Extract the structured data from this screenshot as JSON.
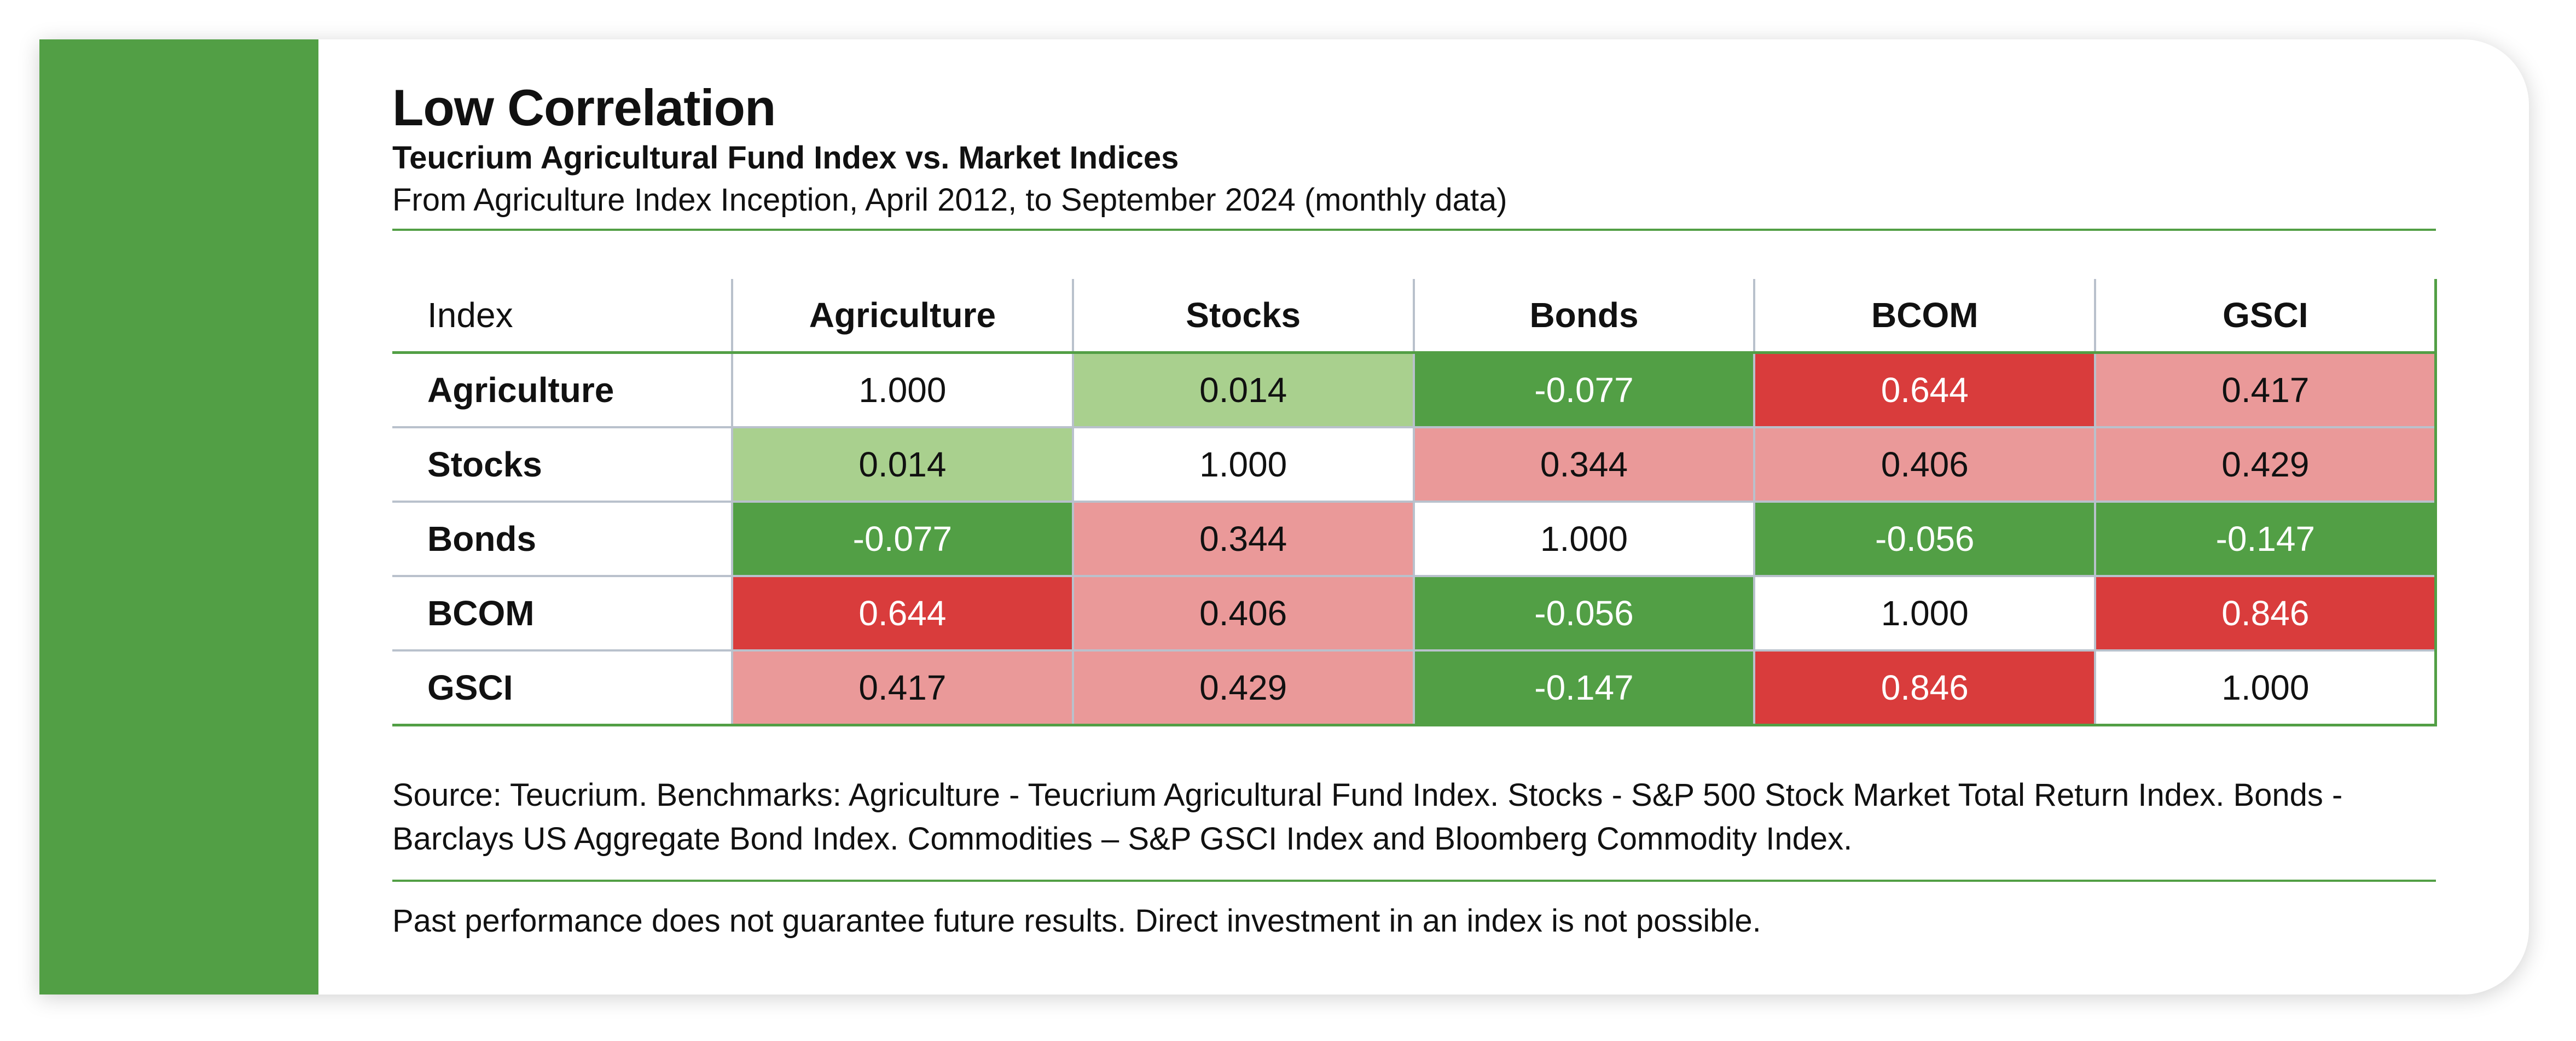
{
  "header": {
    "title": "Low Correlation",
    "subtitle": "Teucrium Agricultural Fund Index vs. Market Indices",
    "date_range": "From Agriculture Index Inception, April 2012, to September 2024 (monthly data)"
  },
  "colors": {
    "brand_green": "#529f45",
    "light_green": "#a9d08e",
    "light_red": "#ea9999",
    "red": "#d93c3c",
    "neutral": "#ffffff"
  },
  "chart_data": {
    "type": "table",
    "corner_label": "Index",
    "columns": [
      "Agriculture",
      "Stocks",
      "Bonds",
      "BCOM",
      "GSCI"
    ],
    "rows": [
      {
        "label": "Agriculture",
        "values": [
          "1.000",
          "0.014",
          "-0.077",
          "0.644",
          "0.417"
        ]
      },
      {
        "label": "Stocks",
        "values": [
          "0.014",
          "1.000",
          "0.344",
          "0.406",
          "0.429"
        ]
      },
      {
        "label": "Bonds",
        "values": [
          "-0.077",
          "0.344",
          "1.000",
          "-0.056",
          "-0.147"
        ]
      },
      {
        "label": "BCOM",
        "values": [
          "0.644",
          "0.406",
          "-0.056",
          "1.000",
          "0.846"
        ]
      },
      {
        "label": "GSCI",
        "values": [
          "0.417",
          "0.429",
          "-0.147",
          "0.846",
          "1.000"
        ]
      }
    ]
  },
  "footer": {
    "source": "Source: Teucrium. Benchmarks: Agriculture - Teucrium Agricultural Fund Index. Stocks - S&P 500 Stock Market Total Return Index. Bonds - Barclays US Aggregate Bond Index. Commodities – S&P GSCI Index and Bloomberg Commodity Index.",
    "disclaimer": "Past performance does not guarantee future results. Direct investment in an index is not possible."
  }
}
